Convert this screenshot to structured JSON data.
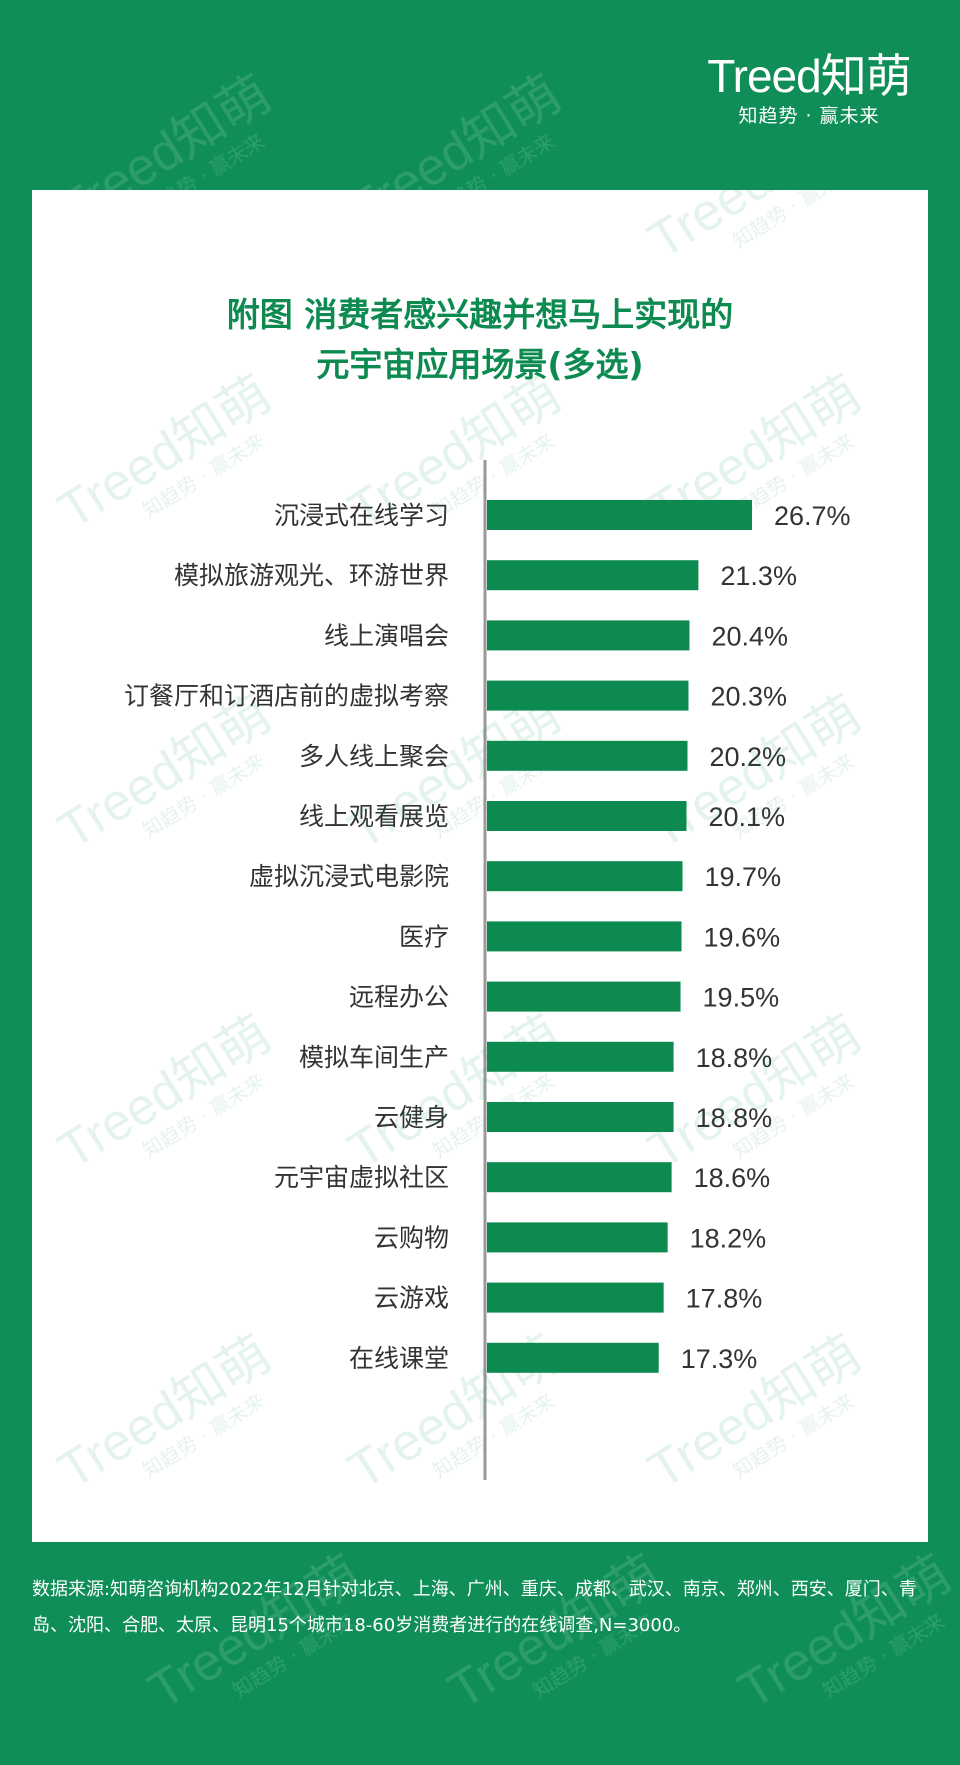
{
  "brand": {
    "logo": "Treed知萌",
    "slogan": "知趋势 · 赢未来"
  },
  "title": {
    "line1": "附图 消费者感兴趣并想马上实现的",
    "line2": "元宇宙应用场景(多选)"
  },
  "chart_data": {
    "type": "bar",
    "orientation": "horizontal",
    "categories": [
      "沉浸式在线学习",
      "模拟旅游观光、环游世界",
      "线上演唱会",
      "订餐厅和订酒店前的虚拟考察",
      "多人线上聚会",
      "线上观看展览",
      "虚拟沉浸式电影院",
      "医疗",
      "远程办公",
      "模拟车间生产",
      "云健身",
      "元宇宙虚拟社区",
      "云购物",
      "云游戏",
      "在线课堂"
    ],
    "values": [
      26.7,
      21.3,
      20.4,
      20.3,
      20.2,
      20.1,
      19.7,
      19.6,
      19.5,
      18.8,
      18.8,
      18.6,
      18.2,
      17.8,
      17.3
    ],
    "labels": [
      "26.7%",
      "21.3%",
      "20.4%",
      "20.3%",
      "20.2%",
      "20.1%",
      "19.7%",
      "19.6%",
      "19.5%",
      "18.8%",
      "18.8%",
      "18.6%",
      "18.2%",
      "17.8%",
      "17.3%"
    ],
    "unit": "%",
    "xlim": [
      0,
      30
    ],
    "grid": false,
    "legend": "none",
    "bar_color": "#0c8a50",
    "axis_color": "#999999"
  },
  "watermark": {
    "text": "Treed知萌",
    "sub": "知趋势 · 赢未来"
  },
  "source": "数据来源:知萌咨询机构2022年12月针对北京、上海、广州、重庆、成都、武汉、南京、郑州、西安、厦门、青岛、沈阳、合肥、太原、昆明15个城市18-60岁消费者进行的在线调查,N=3000。"
}
